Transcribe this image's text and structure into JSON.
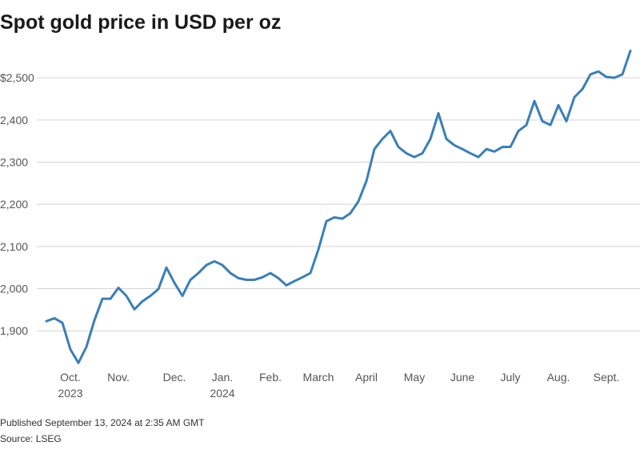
{
  "chart_data": {
    "type": "line",
    "title": "Spot gold price in USD per oz",
    "categories": [
      null,
      null,
      null,
      "Oct. 2023",
      null,
      null,
      null,
      null,
      null,
      "Nov.",
      null,
      null,
      null,
      null,
      null,
      null,
      "Dec.",
      null,
      null,
      null,
      null,
      null,
      "Jan. 2024",
      null,
      null,
      null,
      null,
      null,
      "Feb.",
      null,
      null,
      null,
      null,
      null,
      "March",
      null,
      null,
      null,
      null,
      null,
      "April",
      null,
      null,
      null,
      null,
      null,
      "May",
      null,
      null,
      null,
      null,
      null,
      "June",
      null,
      null,
      null,
      null,
      null,
      "July",
      null,
      null,
      null,
      null,
      null,
      "Aug.",
      null,
      null,
      null,
      null,
      null,
      "Sept.",
      null,
      null,
      null
    ],
    "series": [
      {
        "name": "Spot gold",
        "color": "#3a7fb8",
        "values": [
          1923,
          1930,
          1919,
          1856,
          1824,
          1862,
          1925,
          1976,
          1976,
          2002,
          1983,
          1951,
          1970,
          1983,
          1999,
          2050,
          2014,
          1983,
          2021,
          2037,
          2056,
          2065,
          2056,
          2037,
          2025,
          2021,
          2021,
          2027,
          2037,
          2025,
          2008,
          2018,
          2027,
          2037,
          2093,
          2160,
          2169,
          2166,
          2179,
          2207,
          2255,
          2331,
          2355,
          2374,
          2336,
          2321,
          2312,
          2321,
          2355,
          2416,
          2355,
          2340,
          2331,
          2321,
          2312,
          2331,
          2325,
          2336,
          2336,
          2374,
          2388,
          2445,
          2397,
          2388,
          2435,
          2397,
          2454,
          2473,
          2508,
          2515,
          2502,
          2500,
          2508,
          2564
        ]
      }
    ],
    "ylim": [
      1815,
      2580
    ],
    "yticks": [
      {
        "value": 1900,
        "label": "1,900"
      },
      {
        "value": 2000,
        "label": "2,000"
      },
      {
        "value": 2100,
        "label": "2,100"
      },
      {
        "value": 2200,
        "label": "2,200"
      },
      {
        "value": 2300,
        "label": "2,300"
      },
      {
        "value": 2400,
        "label": "2,400"
      },
      {
        "value": 2500,
        "label": "$2,500"
      }
    ],
    "grid": true,
    "footnote": "Published September 13, 2024 at 2:35 AM GMT",
    "source": "Source: LSEG"
  }
}
